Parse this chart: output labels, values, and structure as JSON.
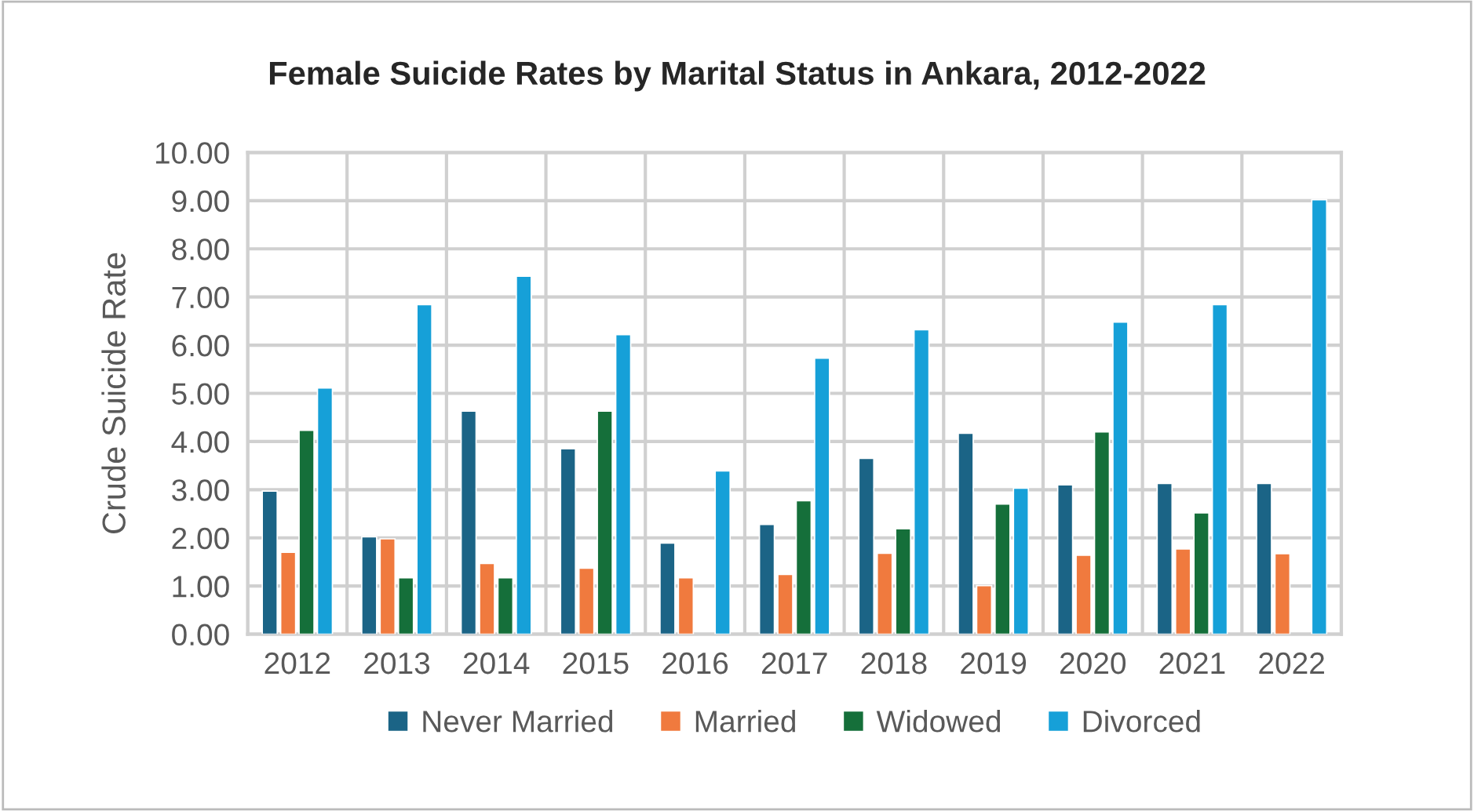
{
  "chart_data": {
    "type": "bar",
    "title": "Female Suicide Rates by Marital Status in Ankara, 2012-2022",
    "ylabel": "Crude Suicide Rate",
    "categories": [
      "2012",
      "2013",
      "2014",
      "2015",
      "2016",
      "2017",
      "2018",
      "2019",
      "2020",
      "2021",
      "2022"
    ],
    "series": [
      {
        "name": "Never Married",
        "color": "#1b6486",
        "values": [
          2.97,
          2.02,
          4.63,
          3.85,
          1.89,
          2.28,
          3.65,
          4.17,
          3.1,
          3.13,
          3.13
        ]
      },
      {
        "name": "Married",
        "color": "#f07a3e",
        "values": [
          1.7,
          1.98,
          1.47,
          1.37,
          1.17,
          1.24,
          1.68,
          1.01,
          1.64,
          1.77,
          1.67
        ]
      },
      {
        "name": "Widowed",
        "color": "#156f3a",
        "values": [
          4.23,
          1.17,
          1.17,
          4.63,
          null,
          2.77,
          2.19,
          2.7,
          4.2,
          2.52,
          null
        ]
      },
      {
        "name": "Divorced",
        "color": "#16a0d8",
        "values": [
          5.11,
          6.84,
          7.43,
          6.22,
          3.39,
          5.73,
          6.32,
          3.03,
          6.48,
          6.84,
          9.02
        ]
      }
    ],
    "ylim": [
      0,
      10
    ],
    "yticks": [
      {
        "value": 0,
        "label": "0.00"
      },
      {
        "value": 1,
        "label": "1.00"
      },
      {
        "value": 2,
        "label": "2.00"
      },
      {
        "value": 3,
        "label": "3.00"
      },
      {
        "value": 4,
        "label": "4.00"
      },
      {
        "value": 5,
        "label": "5.00"
      },
      {
        "value": 6,
        "label": "6.00"
      },
      {
        "value": 7,
        "label": "7.00"
      },
      {
        "value": 8,
        "label": "8.00"
      },
      {
        "value": 9,
        "label": "9.00"
      },
      {
        "value": 10,
        "label": "10.00"
      }
    ],
    "grid": true,
    "legend": "bottom"
  }
}
